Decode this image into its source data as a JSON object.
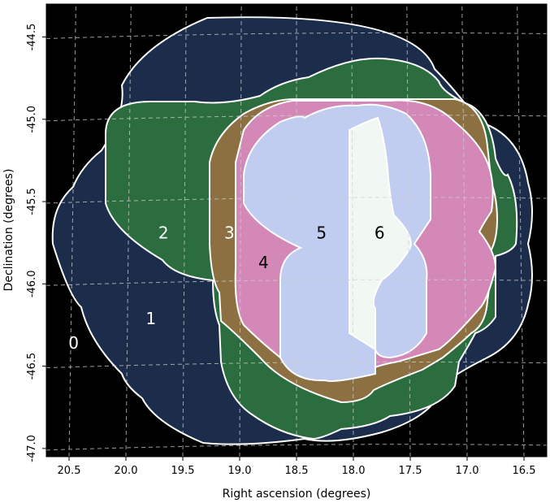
{
  "chart_data": {
    "type": "area",
    "title": "",
    "xlabel": "Right ascension (degrees)",
    "ylabel": "Declination (degrees)",
    "xlim": [
      20.7,
      16.3
    ],
    "ylim": [
      -47.05,
      -44.3
    ],
    "x_ticks": [
      "20.5",
      "20.0",
      "19.5",
      "19.0",
      "18.5",
      "18.0",
      "17.5",
      "17.0",
      "16.5"
    ],
    "y_ticks": [
      "-44.5",
      "-45.0",
      "-45.5",
      "-46.0",
      "-46.5",
      "-47.0"
    ],
    "x_tick_values": [
      20.5,
      20.0,
      19.5,
      19.0,
      18.5,
      18.0,
      17.5,
      17.0,
      16.5
    ],
    "y_tick_values": [
      -44.5,
      -45.0,
      -45.5,
      -46.0,
      -46.5,
      -47.0
    ],
    "grid": true,
    "legend": "none",
    "background_color": "#000000",
    "series": [
      {
        "label": "0",
        "color": "#1b2d4b",
        "label_ra": 20.46,
        "label_dec": -46.36
      },
      {
        "label": "1",
        "color": "#1b2d4b",
        "label_ra": 19.78,
        "label_dec": -46.21
      },
      {
        "label": "2",
        "color": "#2b6d3f",
        "label_ra": 19.67,
        "label_dec": -45.69
      },
      {
        "label": "3",
        "color": "#8c7042",
        "label_ra": 19.09,
        "label_dec": -45.69
      },
      {
        "label": "4",
        "color": "#d388b8",
        "label_ra": 18.79,
        "label_dec": -45.87
      },
      {
        "label": "5",
        "color": "#c1cdf0",
        "label_ra": 18.28,
        "label_dec": -45.69
      },
      {
        "label": "6",
        "color": "#f1f7f2",
        "label_ra": 17.77,
        "label_dec": -45.69
      }
    ]
  }
}
